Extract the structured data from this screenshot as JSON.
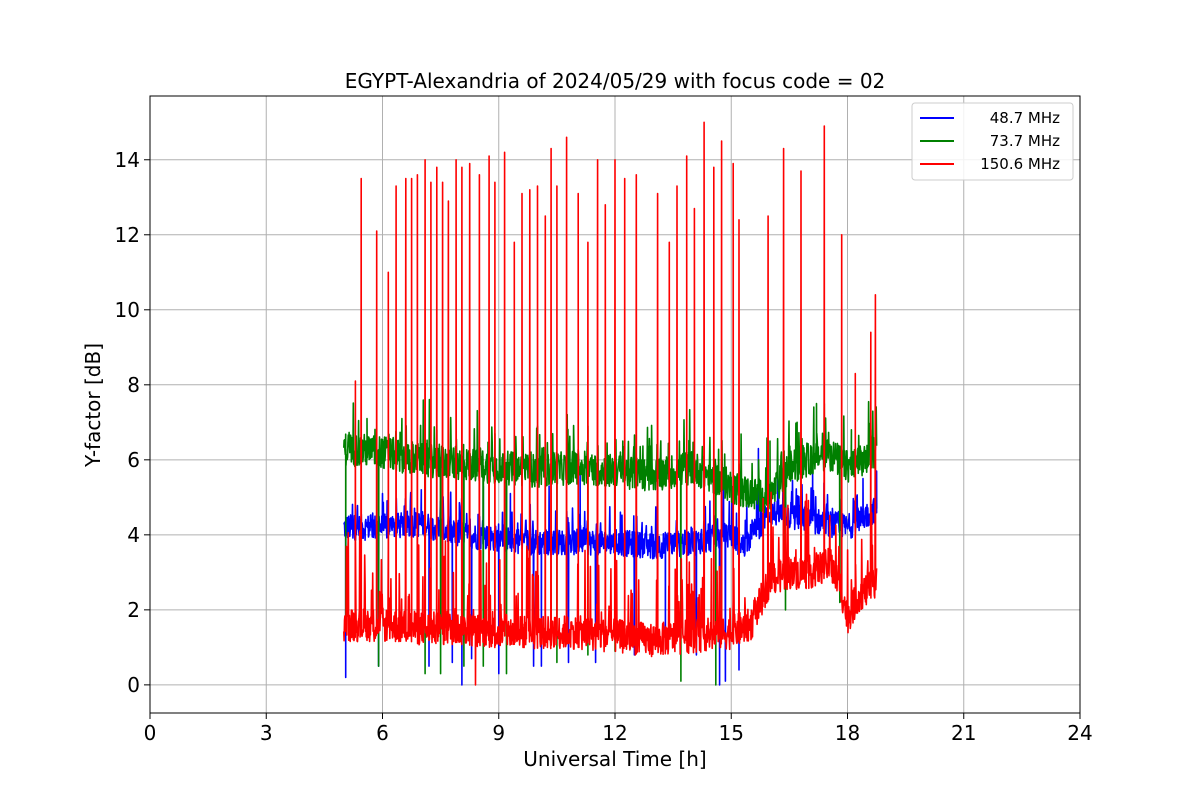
{
  "chart_data": {
    "type": "line",
    "title": "EGYPT-Alexandria of 2024/05/29 with focus code = 02",
    "xlabel": "Universal Time [h]",
    "ylabel": "Y-factor [dB]",
    "xlim": [
      0,
      24
    ],
    "ylim": [
      -0.75,
      15.7
    ],
    "x_ticks": [
      0,
      3,
      6,
      9,
      12,
      15,
      18,
      21,
      24
    ],
    "y_ticks": [
      0,
      2,
      4,
      6,
      8,
      10,
      12,
      14
    ],
    "grid": true,
    "legend_position": "top-right",
    "data_range_x": [
      5.0,
      18.75
    ],
    "series": [
      {
        "name": "48.7 MHz",
        "color": "#0000ff",
        "baseline": [
          [
            5.0,
            4.2
          ],
          [
            6.0,
            4.2
          ],
          [
            7.0,
            4.3
          ],
          [
            8.0,
            4.0
          ],
          [
            9.0,
            3.9
          ],
          [
            10.0,
            3.8
          ],
          [
            11.0,
            3.8
          ],
          [
            12.0,
            3.8
          ],
          [
            13.0,
            3.7
          ],
          [
            14.0,
            3.8
          ],
          [
            15.0,
            4.0
          ],
          [
            15.3,
            3.7
          ],
          [
            16.0,
            4.6
          ],
          [
            17.0,
            4.4
          ],
          [
            17.5,
            4.3
          ],
          [
            18.0,
            4.2
          ],
          [
            18.75,
            4.7
          ]
        ],
        "spikes_down": [
          [
            5.05,
            0.2
          ],
          [
            5.9,
            0.5
          ],
          [
            7.2,
            0.5
          ],
          [
            7.8,
            0.6
          ],
          [
            8.05,
            0.0
          ],
          [
            8.3,
            0.7
          ],
          [
            9.0,
            0.3
          ],
          [
            9.9,
            0.5
          ],
          [
            10.1,
            0.5
          ],
          [
            10.8,
            0.6
          ],
          [
            11.5,
            0.6
          ],
          [
            12.5,
            0.8
          ],
          [
            13.3,
            0.9
          ],
          [
            14.1,
            0.8
          ],
          [
            14.7,
            0.0
          ],
          [
            14.85,
            0.1
          ],
          [
            15.2,
            0.4
          ]
        ],
        "spikes_up": [
          [
            6.0,
            5.1
          ],
          [
            7.0,
            5.2
          ],
          [
            8.6,
            5.3
          ],
          [
            9.3,
            5.1
          ],
          [
            10.3,
            5.3
          ],
          [
            11.1,
            5.6
          ],
          [
            13.1,
            6.0
          ],
          [
            14.8,
            5.5
          ],
          [
            15.7,
            6.3
          ],
          [
            16.2,
            5.5
          ],
          [
            17.1,
            5.8
          ],
          [
            18.4,
            5.5
          ],
          [
            18.75,
            5.7
          ]
        ]
      },
      {
        "name": "73.7 MHz",
        "color": "#008000",
        "baseline": [
          [
            5.0,
            6.3
          ],
          [
            6.0,
            6.2
          ],
          [
            7.0,
            6.0
          ],
          [
            8.0,
            5.9
          ],
          [
            9.0,
            5.8
          ],
          [
            10.0,
            5.7
          ],
          [
            11.0,
            5.8
          ],
          [
            12.0,
            5.7
          ],
          [
            13.0,
            5.6
          ],
          [
            14.0,
            5.8
          ],
          [
            15.0,
            5.3
          ],
          [
            15.5,
            5.1
          ],
          [
            16.0,
            5.0
          ],
          [
            16.5,
            5.8
          ],
          [
            17.0,
            6.0
          ],
          [
            17.5,
            6.2
          ],
          [
            18.0,
            5.8
          ],
          [
            18.5,
            6.0
          ],
          [
            18.75,
            6.3
          ]
        ],
        "spikes_down": [
          [
            5.05,
            1.5
          ],
          [
            5.9,
            0.5
          ],
          [
            7.1,
            0.3
          ],
          [
            7.5,
            0.3
          ],
          [
            8.1,
            0.5
          ],
          [
            8.6,
            0.5
          ],
          [
            9.2,
            0.3
          ],
          [
            10.5,
            0.6
          ],
          [
            11.3,
            0.8
          ],
          [
            12.0,
            0.9
          ],
          [
            13.7,
            0.1
          ],
          [
            14.6,
            0.0
          ],
          [
            16.4,
            2.0
          ],
          [
            17.8,
            2.2
          ]
        ],
        "spikes_up": [
          [
            5.6,
            7.1
          ],
          [
            6.5,
            7.1
          ],
          [
            7.4,
            6.8
          ],
          [
            8.9,
            6.7
          ],
          [
            10.0,
            6.9
          ],
          [
            11.3,
            6.9
          ],
          [
            12.2,
            6.5
          ],
          [
            13.9,
            6.2
          ],
          [
            16.0,
            6.5
          ],
          [
            16.7,
            7.0
          ],
          [
            17.2,
            7.5
          ],
          [
            17.4,
            7.5
          ],
          [
            18.1,
            6.8
          ],
          [
            18.6,
            6.8
          ]
        ]
      },
      {
        "name": "150.6 MHz",
        "color": "#ff0000",
        "baseline": [
          [
            5.0,
            1.6
          ],
          [
            6.0,
            1.6
          ],
          [
            7.0,
            1.5
          ],
          [
            8.0,
            1.5
          ],
          [
            9.0,
            1.4
          ],
          [
            10.0,
            1.4
          ],
          [
            11.0,
            1.4
          ],
          [
            12.0,
            1.3
          ],
          [
            13.0,
            1.2
          ],
          [
            14.0,
            1.3
          ],
          [
            15.0,
            1.4
          ],
          [
            15.5,
            1.6
          ],
          [
            16.0,
            2.8
          ],
          [
            16.5,
            3.0
          ],
          [
            17.0,
            3.0
          ],
          [
            17.5,
            3.2
          ],
          [
            17.8,
            2.7
          ],
          [
            18.0,
            1.8
          ],
          [
            18.3,
            2.4
          ],
          [
            18.75,
            2.7
          ]
        ],
        "spikes_up": [
          [
            5.3,
            8.1
          ],
          [
            5.45,
            13.5
          ],
          [
            5.85,
            12.1
          ],
          [
            6.15,
            11.0
          ],
          [
            6.35,
            13.3
          ],
          [
            6.6,
            13.5
          ],
          [
            6.75,
            13.5
          ],
          [
            6.9,
            13.6
          ],
          [
            7.1,
            14.0
          ],
          [
            7.25,
            13.4
          ],
          [
            7.4,
            13.8
          ],
          [
            7.55,
            13.4
          ],
          [
            7.7,
            12.9
          ],
          [
            7.9,
            14.0
          ],
          [
            8.05,
            13.8
          ],
          [
            8.25,
            13.9
          ],
          [
            8.5,
            13.6
          ],
          [
            8.75,
            14.1
          ],
          [
            8.9,
            13.4
          ],
          [
            9.15,
            14.2
          ],
          [
            9.4,
            11.8
          ],
          [
            9.6,
            13.1
          ],
          [
            9.8,
            13.2
          ],
          [
            10.0,
            13.3
          ],
          [
            10.2,
            12.5
          ],
          [
            10.35,
            14.3
          ],
          [
            10.5,
            13.3
          ],
          [
            10.75,
            14.6
          ],
          [
            11.05,
            13.1
          ],
          [
            11.3,
            11.8
          ],
          [
            11.55,
            14.0
          ],
          [
            11.75,
            12.8
          ],
          [
            12.0,
            14.0
          ],
          [
            12.25,
            13.5
          ],
          [
            12.55,
            13.6
          ],
          [
            13.1,
            13.1
          ],
          [
            13.4,
            11.8
          ],
          [
            13.6,
            13.3
          ],
          [
            13.85,
            14.1
          ],
          [
            14.05,
            12.7
          ],
          [
            14.3,
            15.0
          ],
          [
            14.55,
            13.8
          ],
          [
            14.75,
            14.5
          ],
          [
            15.05,
            13.9
          ],
          [
            15.2,
            12.4
          ],
          [
            15.95,
            12.5
          ],
          [
            16.35,
            14.3
          ],
          [
            16.8,
            13.7
          ],
          [
            17.4,
            14.9
          ],
          [
            17.85,
            12.0
          ],
          [
            18.2,
            8.3
          ],
          [
            18.6,
            9.4
          ],
          [
            18.72,
            10.4
          ]
        ],
        "spikes_down": [
          [
            8.4,
            0.0
          ]
        ]
      }
    ]
  }
}
